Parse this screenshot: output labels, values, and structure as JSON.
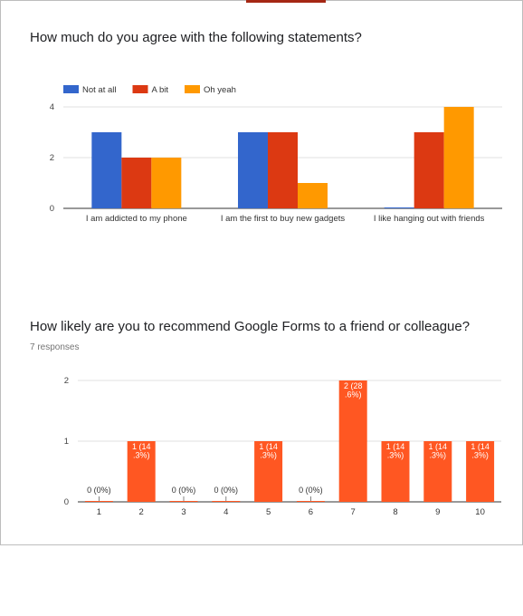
{
  "questions": [
    {
      "title": "How much do you agree with the following statements?",
      "responses": ""
    },
    {
      "title": "How likely are you to recommend Google Forms to a friend or colleague?",
      "responses": "7 responses"
    }
  ],
  "colors": {
    "not_at_all": "#3366cc",
    "a_bit": "#dc3912",
    "oh_yeah": "#ff9900",
    "likert": "#ff5722",
    "grid": "#e0e0e0",
    "axis": "#333333"
  },
  "chart_data": [
    {
      "type": "bar",
      "title": "",
      "categories": [
        "I am addicted to my phone",
        "I am the first to buy new gadgets",
        "I like hanging out with friends"
      ],
      "series": [
        {
          "name": "Not at all",
          "values": [
            3,
            3,
            0
          ],
          "color": "#3366cc"
        },
        {
          "name": "A bit",
          "values": [
            2,
            3,
            3
          ],
          "color": "#dc3912"
        },
        {
          "name": "Oh yeah",
          "values": [
            2,
            1,
            4
          ],
          "color": "#ff9900"
        }
      ],
      "yticks": [
        0,
        2,
        4
      ],
      "ylim": [
        0,
        4
      ],
      "legend": "top-left",
      "grid": true
    },
    {
      "type": "bar",
      "title": "",
      "categories": [
        "1",
        "2",
        "3",
        "4",
        "5",
        "6",
        "7",
        "8",
        "9",
        "10"
      ],
      "values": [
        0,
        1,
        0,
        0,
        1,
        0,
        2,
        1,
        1,
        1
      ],
      "labels": [
        "0 (0%)",
        "1 (14.3%)",
        "0 (0%)",
        "0 (0%)",
        "1 (14.3%)",
        "0 (0%)",
        "2 (28.6%)",
        "1 (14.3%)",
        "1 (14.3%)",
        "1 (14.3%)"
      ],
      "yticks": [
        0,
        1,
        2
      ],
      "ylim": [
        0,
        2
      ],
      "grid": true
    }
  ]
}
